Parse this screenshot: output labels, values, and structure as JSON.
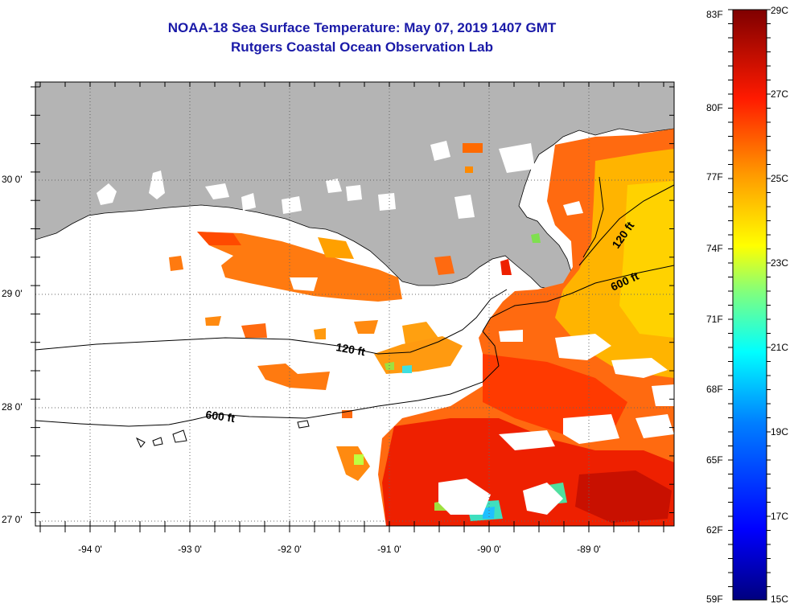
{
  "title": {
    "line1": "NOAA-18 Sea Surface Temperature:  May 07, 2019 1407 GMT",
    "line2": "Rutgers Coastal Ocean Observation Lab"
  },
  "map": {
    "lon_labels": [
      "-94 0'",
      "-93 0'",
      "-92 0'",
      "-91 0'",
      "-90 0'",
      "-89 0'"
    ],
    "lat_labels": [
      "30 0'",
      "29 0'",
      "28 0'",
      "27 0'"
    ],
    "contours": [
      {
        "name": "120 ft",
        "label": "120 ft"
      },
      {
        "name": "600 ft",
        "label": "600 ft"
      },
      {
        "name": "120 ft east",
        "label": "120 ft"
      },
      {
        "name": "600 ft east",
        "label": "600 ft"
      }
    ],
    "land_color": "#b4b4b4",
    "nodata_color": "#ffffff"
  },
  "colorbar": {
    "f_labels": [
      "83F",
      "80F",
      "77F",
      "74F",
      "71F",
      "68F",
      "65F",
      "62F",
      "59F"
    ],
    "c_labels": [
      "29C",
      "27C",
      "25C",
      "23C",
      "21C",
      "19C",
      "17C",
      "15C"
    ],
    "range_c": [
      15,
      29
    ],
    "colors": [
      "#00007f",
      "#0000ff",
      "#007fff",
      "#00ffff",
      "#7fff7f",
      "#ffff00",
      "#ff7f00",
      "#ff0000",
      "#7f0000"
    ]
  }
}
